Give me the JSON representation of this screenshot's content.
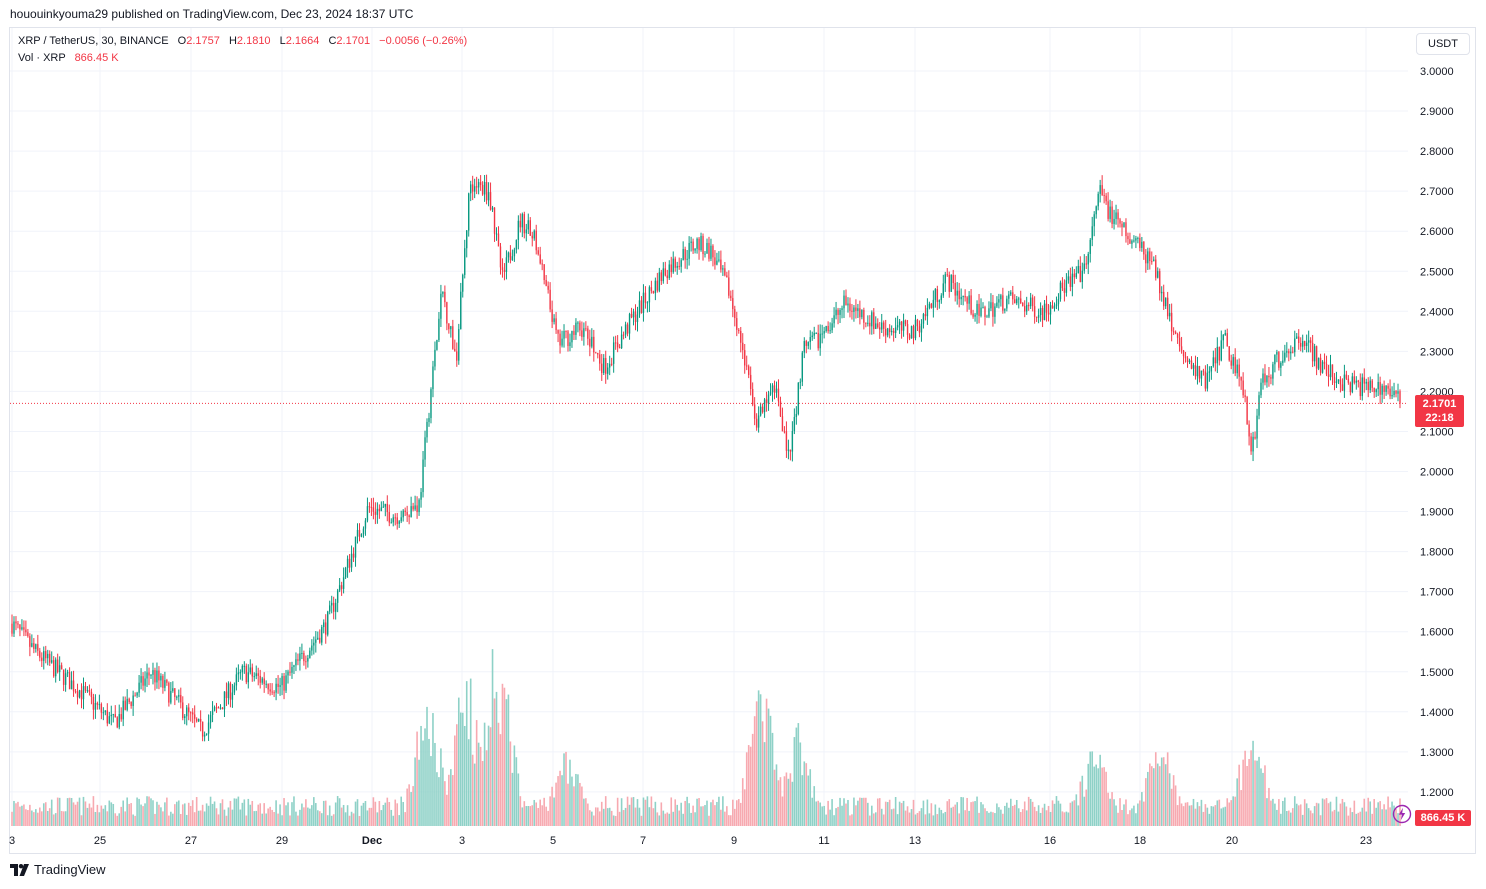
{
  "header": {
    "publish_line": "hououinkyouma29 published on TradingView.com, Dec 23, 2024 18:37 UTC"
  },
  "legend": {
    "symbol": "XRP / TetherUS, 30, BINANCE",
    "open_label": "O",
    "open": "2.1757",
    "high_label": "H",
    "high": "2.1810",
    "low_label": "L",
    "low": "2.1664",
    "close_label": "C",
    "close": "2.1701",
    "change": "−0.0056 (−0.26%)",
    "vol_label": "Vol · XRP",
    "vol_value": "866.45 K"
  },
  "currency_button": "USDT",
  "price_tag": {
    "price": "2.1701",
    "countdown": "22:18"
  },
  "volume_tag": "866.45 K",
  "footer": {
    "brand": "TradingView"
  },
  "colors": {
    "up": "#089981",
    "down": "#f23645",
    "vol_up": "#8ed1c7",
    "vol_down": "#f7a9b0",
    "grid": "#f0f3fa",
    "axis_text": "#131722"
  },
  "chart_data": {
    "type": "candlestick",
    "interval": "30",
    "y_axis_ticks": [
      "3.0000",
      "2.9000",
      "2.8000",
      "2.7000",
      "2.6000",
      "2.5000",
      "2.4000",
      "2.3000",
      "2.2000",
      "2.1000",
      "2.0000",
      "1.9000",
      "1.8000",
      "1.7000",
      "1.6000",
      "1.5000",
      "1.4000",
      "1.3000",
      "1.2000"
    ],
    "ylim": [
      1.15,
      3.03
    ],
    "x_axis_ticks": [
      "3",
      "25",
      "27",
      "29",
      "Dec",
      "3",
      "5",
      "7",
      "9",
      "11",
      "13",
      "16",
      "18",
      "20",
      "23"
    ],
    "last_price": 2.1701,
    "price_path": [
      {
        "t": 0,
        "p": 1.62
      },
      {
        "t": 0.5,
        "p": 1.55
      },
      {
        "t": 1.5,
        "p": 1.45
      },
      {
        "t": 2.2,
        "p": 1.37
      },
      {
        "t": 3.0,
        "p": 1.5
      },
      {
        "t": 3.6,
        "p": 1.42
      },
      {
        "t": 4.1,
        "p": 1.35
      },
      {
        "t": 5.0,
        "p": 1.5
      },
      {
        "t": 5.8,
        "p": 1.46
      },
      {
        "t": 6.8,
        "p": 1.62
      },
      {
        "t": 7.3,
        "p": 1.78
      },
      {
        "t": 7.7,
        "p": 1.91
      },
      {
        "t": 8.3,
        "p": 1.89
      },
      {
        "t": 8.8,
        "p": 1.92
      },
      {
        "t": 9.05,
        "p": 2.2
      },
      {
        "t": 9.3,
        "p": 2.45
      },
      {
        "t": 9.6,
        "p": 2.28
      },
      {
        "t": 9.9,
        "p": 2.72
      },
      {
        "t": 10.3,
        "p": 2.7
      },
      {
        "t": 10.6,
        "p": 2.48
      },
      {
        "t": 11.0,
        "p": 2.63
      },
      {
        "t": 11.3,
        "p": 2.58
      },
      {
        "t": 11.8,
        "p": 2.32
      },
      {
        "t": 12.3,
        "p": 2.36
      },
      {
        "t": 12.8,
        "p": 2.26
      },
      {
        "t": 13.4,
        "p": 2.38
      },
      {
        "t": 14.1,
        "p": 2.5
      },
      {
        "t": 14.8,
        "p": 2.57
      },
      {
        "t": 15.1,
        "p": 2.55
      },
      {
        "t": 15.5,
        "p": 2.45
      },
      {
        "t": 15.8,
        "p": 2.3
      },
      {
        "t": 16.1,
        "p": 2.12
      },
      {
        "t": 16.5,
        "p": 2.22
      },
      {
        "t": 16.8,
        "p": 2.03
      },
      {
        "t": 17.1,
        "p": 2.3
      },
      {
        "t": 17.6,
        "p": 2.35
      },
      {
        "t": 18.0,
        "p": 2.42
      },
      {
        "t": 18.8,
        "p": 2.36
      },
      {
        "t": 19.5,
        "p": 2.35
      },
      {
        "t": 20.2,
        "p": 2.48
      },
      {
        "t": 20.9,
        "p": 2.39
      },
      {
        "t": 21.5,
        "p": 2.43
      },
      {
        "t": 22.3,
        "p": 2.4
      },
      {
        "t": 22.8,
        "p": 2.47
      },
      {
        "t": 23.2,
        "p": 2.5
      },
      {
        "t": 23.5,
        "p": 2.7
      },
      {
        "t": 23.8,
        "p": 2.63
      },
      {
        "t": 24.2,
        "p": 2.58
      },
      {
        "t": 24.6,
        "p": 2.53
      },
      {
        "t": 25.0,
        "p": 2.4
      },
      {
        "t": 25.3,
        "p": 2.28
      },
      {
        "t": 25.8,
        "p": 2.22
      },
      {
        "t": 26.2,
        "p": 2.33
      },
      {
        "t": 26.6,
        "p": 2.22
      },
      {
        "t": 26.8,
        "p": 2.05
      },
      {
        "t": 27.0,
        "p": 2.22
      },
      {
        "t": 27.5,
        "p": 2.3
      },
      {
        "t": 27.9,
        "p": 2.34
      },
      {
        "t": 28.3,
        "p": 2.26
      },
      {
        "t": 28.8,
        "p": 2.22
      },
      {
        "t": 29.3,
        "p": 2.21
      },
      {
        "t": 29.7,
        "p": 2.21
      },
      {
        "t": 30.0,
        "p": 2.17
      }
    ],
    "volume_spikes": [
      {
        "t": 9.0,
        "v": 0.75
      },
      {
        "t": 9.8,
        "v": 0.85
      },
      {
        "t": 10.5,
        "v": 1.0
      },
      {
        "t": 16.2,
        "v": 0.75
      },
      {
        "t": 17.0,
        "v": 0.5
      },
      {
        "t": 23.4,
        "v": 0.44
      },
      {
        "t": 24.8,
        "v": 0.55
      },
      {
        "t": 26.8,
        "v": 0.53
      },
      {
        "t": 12.0,
        "v": 0.43
      }
    ]
  }
}
